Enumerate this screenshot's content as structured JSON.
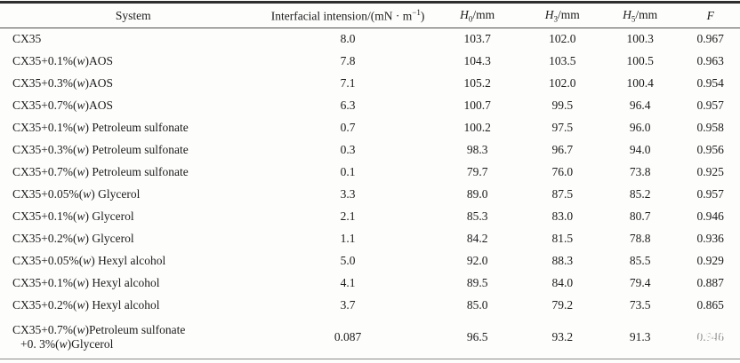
{
  "header": {
    "system": "System",
    "interfacial_pre": "Interfacial intension/(mN · m",
    "interfacial_sup": "−1",
    "interfacial_post": ")",
    "h0": {
      "symbol": "H",
      "sub": "0",
      "unit": "/mm"
    },
    "h3": {
      "symbol": "H",
      "sub": "3",
      "unit": "/mm"
    },
    "h5": {
      "symbol": "H",
      "sub": "5",
      "unit": "/mm"
    },
    "f": "F"
  },
  "rows": [
    {
      "sys1_pre": "CX35",
      "sys1_w": "",
      "sys1_post": "",
      "ift": "8.0",
      "h0": "103.7",
      "h3": "102.0",
      "h5": "100.3",
      "f": "0.967"
    },
    {
      "sys1_pre": "CX35+0.1%(",
      "sys1_w": "w",
      "sys1_post": ")AOS",
      "ift": "7.8",
      "h0": "104.3",
      "h3": "103.5",
      "h5": "100.5",
      "f": "0.963"
    },
    {
      "sys1_pre": "CX35+0.3%(",
      "sys1_w": "w",
      "sys1_post": ")AOS",
      "ift": "7.1",
      "h0": "105.2",
      "h3": "102.0",
      "h5": "100.4",
      "f": "0.954"
    },
    {
      "sys1_pre": "CX35+0.7%(",
      "sys1_w": "w",
      "sys1_post": ")AOS",
      "ift": "6.3",
      "h0": "100.7",
      "h3": "99.5",
      "h5": "96.4",
      "f": "0.957"
    },
    {
      "sys1_pre": "CX35+0.1%(",
      "sys1_w": "w",
      "sys1_post": ") Petroleum sulfonate",
      "ift": "0.7",
      "h0": "100.2",
      "h3": "97.5",
      "h5": "96.0",
      "f": "0.958"
    },
    {
      "sys1_pre": "CX35+0.3%(",
      "sys1_w": "w",
      "sys1_post": ") Petroleum sulfonate",
      "ift": "0.3",
      "h0": "98.3",
      "h3": "96.7",
      "h5": "94.0",
      "f": "0.956"
    },
    {
      "sys1_pre": "CX35+0.7%(",
      "sys1_w": "w",
      "sys1_post": ") Petroleum sulfonate",
      "ift": "0.1",
      "h0": "79.7",
      "h3": "76.0",
      "h5": "73.8",
      "f": "0.925"
    },
    {
      "sys1_pre": "CX35+0.05%(",
      "sys1_w": "w",
      "sys1_post": ") Glycerol",
      "ift": "3.3",
      "h0": "89.0",
      "h3": "87.5",
      "h5": "85.2",
      "f": "0.957"
    },
    {
      "sys1_pre": "CX35+0.1%(",
      "sys1_w": "w",
      "sys1_post": ") Glycerol",
      "ift": "2.1",
      "h0": "85.3",
      "h3": "83.0",
      "h5": "80.7",
      "f": "0.946"
    },
    {
      "sys1_pre": "CX35+0.2%(",
      "sys1_w": "w",
      "sys1_post": ") Glycerol",
      "ift": "1.1",
      "h0": "84.2",
      "h3": "81.5",
      "h5": "78.8",
      "f": "0.936"
    },
    {
      "sys1_pre": "CX35+0.05%(",
      "sys1_w": "w",
      "sys1_post": ") Hexyl alcohol",
      "ift": "5.0",
      "h0": "92.0",
      "h3": "88.3",
      "h5": "85.5",
      "f": "0.929"
    },
    {
      "sys1_pre": "CX35+0.1%(",
      "sys1_w": "w",
      "sys1_post": ") Hexyl alcohol",
      "ift": "4.1",
      "h0": "89.5",
      "h3": "84.0",
      "h5": "79.4",
      "f": "0.887"
    },
    {
      "sys1_pre": "CX35+0.2%(",
      "sys1_w": "w",
      "sys1_post": ") Hexyl alcohol",
      "ift": "3.7",
      "h0": "85.0",
      "h3": "79.2",
      "h5": "73.5",
      "f": "0.865"
    },
    {
      "sys1_pre": "CX35+0.7%(",
      "sys1_w": "w",
      "sys1_post": ")Petroleum sulfonate",
      "sys2_pre": "+0. 3%(",
      "sys2_w": "w",
      "sys2_post": ")Glycerol",
      "ift": "0.087",
      "h0": "96.5",
      "h3": "93.2",
      "h5": "91.3",
      "f": "0.946",
      "f_smudged": true
    }
  ]
}
